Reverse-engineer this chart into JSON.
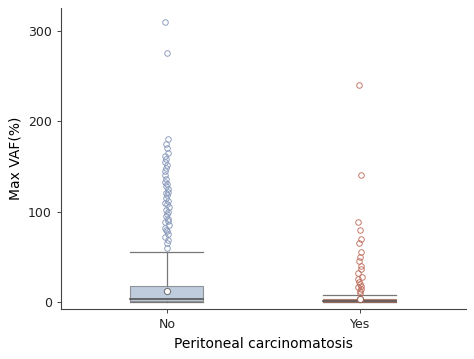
{
  "title": "",
  "xlabel": "Peritoneal carcinomatosis",
  "ylabel": "Max VAF(%)",
  "categories": [
    "No",
    "Yes"
  ],
  "ylim": [
    -8,
    325
  ],
  "yticks": [
    0,
    100,
    200,
    300
  ],
  "box_no": {
    "q1": 1,
    "median": 3,
    "q3": 18,
    "whisker_low": 0,
    "whisker_high": 55,
    "mean": 12,
    "color": "#a8bcd4",
    "edge_color": "#777777",
    "flier_color": "#8899bb"
  },
  "box_yes": {
    "q1": 0,
    "median": 1,
    "q3": 3,
    "whisker_low": 0,
    "whisker_high": 8,
    "mean": 3,
    "color": "#d4857a",
    "edge_color": "#996655",
    "flier_color": "#c07060"
  },
  "no_outliers": [
    60,
    65,
    68,
    72,
    75,
    78,
    80,
    82,
    85,
    88,
    90,
    92,
    95,
    97,
    100,
    102,
    105,
    108,
    110,
    112,
    115,
    118,
    120,
    122,
    125,
    128,
    130,
    133,
    136,
    140,
    145,
    148,
    152,
    155,
    158,
    162,
    165,
    170,
    175,
    180,
    275,
    310
  ],
  "yes_outliers": [
    10,
    12,
    14,
    16,
    18,
    20,
    22,
    25,
    28,
    32,
    36,
    40,
    45,
    50,
    55,
    65,
    70,
    80,
    88,
    140,
    240
  ],
  "background_color": "#ffffff",
  "box_width": 0.38,
  "fontsize_label": 10,
  "fontsize_tick": 9,
  "median_color": "#555555",
  "whisker_color": "#777777"
}
